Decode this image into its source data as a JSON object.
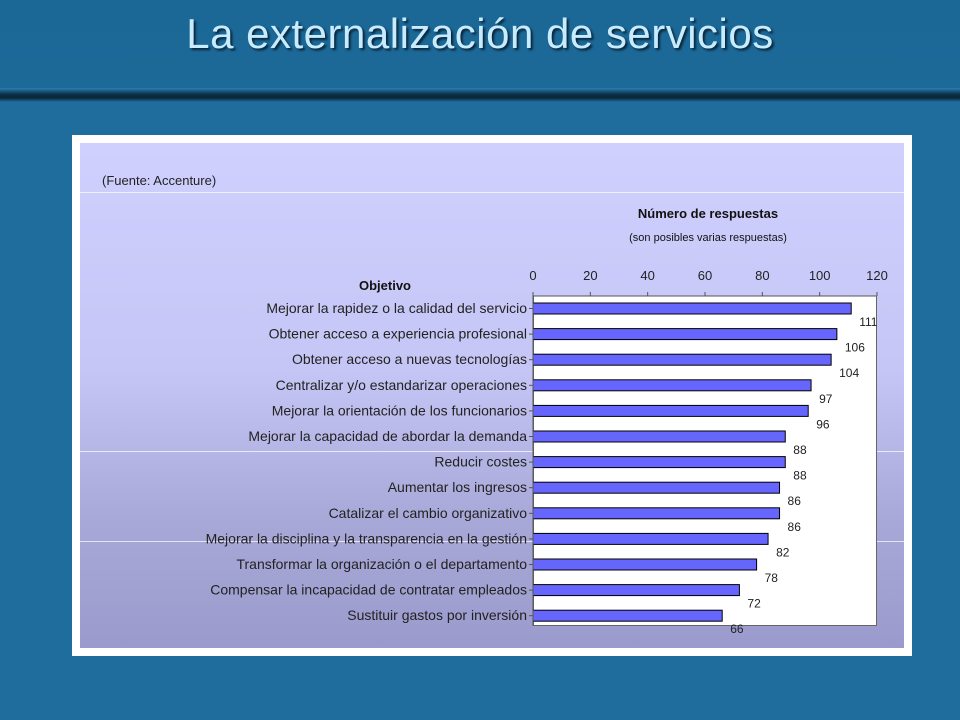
{
  "slide": {
    "title": "La externalización de servicios",
    "source": "(Fuente: Accenture)"
  },
  "colors": {
    "background": "#1f6d9c",
    "title": "#c8ecff",
    "bar_fill": "#6666ff",
    "bar_stroke": "#000000"
  },
  "chart_data": {
    "type": "bar",
    "orientation": "horizontal",
    "title": "Número de respuestas",
    "subtitle": "(son posibles varias respuestas)",
    "ylabel": "Objetivo",
    "xlim": [
      0,
      120
    ],
    "x_ticks": [
      "0",
      "20",
      "40",
      "60",
      "80",
      "100",
      "120"
    ],
    "x_axis_position": "top",
    "grid": false,
    "legend": "none",
    "categories": [
      "Mejorar la rapidez o la calidad del servicio",
      "Obtener acceso a experiencia profesional",
      "Obtener acceso a nuevas tecnologías",
      "Centralizar y/o estandarizar operaciones",
      "Mejorar la orientación de los funcionarios",
      "Mejorar la capacidad de abordar la demanda",
      "Reducir costes",
      "Aumentar los ingresos",
      "Catalizar el cambio organizativo",
      "Mejorar la disciplina y la transparencia en la gestión",
      "Transformar la organización o el departamento",
      "Compensar la incapacidad de contratar empleados",
      "Sustituir gastos por inversión"
    ],
    "values": [
      111,
      106,
      104,
      97,
      96,
      88,
      88,
      86,
      86,
      82,
      78,
      72,
      66
    ]
  }
}
